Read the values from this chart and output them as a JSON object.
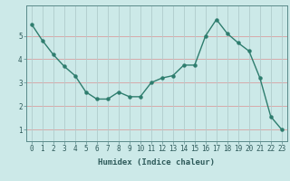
{
  "x": [
    0,
    1,
    2,
    3,
    4,
    5,
    6,
    7,
    8,
    9,
    10,
    11,
    12,
    13,
    14,
    15,
    16,
    17,
    18,
    19,
    20,
    21,
    22,
    23
  ],
  "y": [
    5.5,
    4.8,
    4.2,
    3.7,
    3.3,
    2.6,
    2.3,
    2.3,
    2.6,
    2.4,
    2.4,
    3.0,
    3.2,
    3.3,
    3.75,
    3.75,
    5.0,
    5.7,
    5.1,
    4.7,
    4.35,
    3.2,
    1.55,
    1.0
  ],
  "line_color": "#2e7d6e",
  "marker": "o",
  "markersize": 2.2,
  "linewidth": 1.0,
  "xlabel": "Humidex (Indice chaleur)",
  "xlabel_fontsize": 6.5,
  "bg_color": "#cce9e8",
  "plot_bg_color": "#cce9e8",
  "hgrid_color": "#d9a0a0",
  "vgrid_color": "#b0cccc",
  "tick_label_fontsize": 5.5,
  "xlim": [
    -0.5,
    23.5
  ],
  "ylim": [
    0.5,
    6.3
  ],
  "yticks": [
    1,
    2,
    3,
    4,
    5
  ],
  "xticks": [
    0,
    1,
    2,
    3,
    4,
    5,
    6,
    7,
    8,
    9,
    10,
    11,
    12,
    13,
    14,
    15,
    16,
    17,
    18,
    19,
    20,
    21,
    22,
    23
  ],
  "spine_color": "#5a8a8a",
  "tick_color": "#2e5a5a",
  "label_color": "#2e5a5a"
}
